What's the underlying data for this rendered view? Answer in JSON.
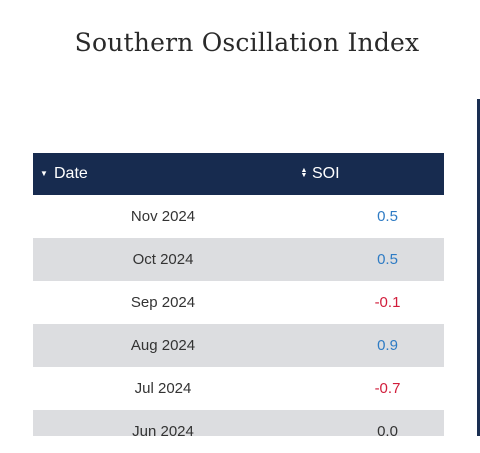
{
  "title": "Southern Oscillation Index",
  "table": {
    "headers": {
      "date": "Date",
      "soi": "SOI"
    },
    "rows": [
      {
        "date": "Nov 2024",
        "soi": "0.5"
      },
      {
        "date": "Oct 2024",
        "soi": "0.5"
      },
      {
        "date": "Sep 2024",
        "soi": "-0.1"
      },
      {
        "date": "Aug 2024",
        "soi": "0.9"
      },
      {
        "date": "Jul 2024",
        "soi": "-0.7"
      },
      {
        "date": "Jun 2024",
        "soi": "0.0"
      }
    ]
  },
  "colors": {
    "header_bg": "#172b4f",
    "stripe": "#dcdde0",
    "positive": "#2e7bc4",
    "negative": "#d11d3b"
  },
  "icons": {
    "date_sort": "sort-descending-icon",
    "soi_sort": "sort-both-icon"
  }
}
